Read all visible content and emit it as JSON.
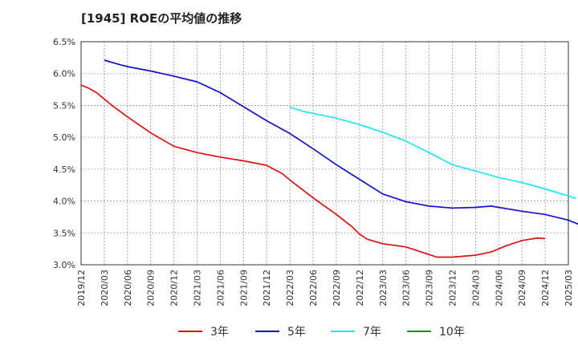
{
  "chart_data": {
    "type": "line",
    "title": "[1945]  ROEの平均値の推移",
    "xlabel": "",
    "ylabel": "",
    "ylim": [
      3.0,
      6.5
    ],
    "y_ticks": [
      "3.0%",
      "3.5%",
      "4.0%",
      "4.5%",
      "5.0%",
      "5.5%",
      "6.0%",
      "6.5%"
    ],
    "x_ticks": [
      "2019/12",
      "2020/03",
      "2020/06",
      "2020/09",
      "2020/12",
      "2021/03",
      "2021/06",
      "2021/09",
      "2021/12",
      "2022/03",
      "2022/06",
      "2022/09",
      "2022/12",
      "2023/03",
      "2023/06",
      "2023/09",
      "2023/12",
      "2024/03",
      "2024/06",
      "2024/09",
      "2024/12",
      "2025/03"
    ],
    "grid": true,
    "legend_position": "bottom",
    "series": [
      {
        "name": "3年",
        "color": "#dd1111",
        "points": [
          [
            "2019/12",
            5.82
          ],
          [
            "2020/01",
            5.77
          ],
          [
            "2020/02",
            5.7
          ],
          [
            "2020/03",
            5.6
          ],
          [
            "2020/04",
            5.5
          ],
          [
            "2020/06",
            5.32
          ],
          [
            "2020/09",
            5.07
          ],
          [
            "2020/12",
            4.86
          ],
          [
            "2021/03",
            4.76
          ],
          [
            "2021/06",
            4.69
          ],
          [
            "2021/09",
            4.63
          ],
          [
            "2021/12",
            4.56
          ],
          [
            "2022/02",
            4.43
          ],
          [
            "2022/03",
            4.33
          ],
          [
            "2022/06",
            4.05
          ],
          [
            "2022/09",
            3.79
          ],
          [
            "2022/11",
            3.6
          ],
          [
            "2022/12",
            3.48
          ],
          [
            "2023/01",
            3.4
          ],
          [
            "2023/03",
            3.33
          ],
          [
            "2023/06",
            3.28
          ],
          [
            "2023/09",
            3.16
          ],
          [
            "2023/10",
            3.12
          ],
          [
            "2023/12",
            3.12
          ],
          [
            "2024/03",
            3.15
          ],
          [
            "2024/05",
            3.2
          ],
          [
            "2024/07",
            3.3
          ],
          [
            "2024/09",
            3.38
          ],
          [
            "2024/11",
            3.42
          ],
          [
            "2024/12",
            3.41
          ]
        ]
      },
      {
        "name": "5年",
        "color": "#1111cc",
        "points": [
          [
            "2020/03",
            6.21
          ],
          [
            "2020/05",
            6.14
          ],
          [
            "2020/06",
            6.11
          ],
          [
            "2020/09",
            6.04
          ],
          [
            "2020/12",
            5.96
          ],
          [
            "2021/03",
            5.87
          ],
          [
            "2021/06",
            5.7
          ],
          [
            "2021/09",
            5.48
          ],
          [
            "2021/12",
            5.26
          ],
          [
            "2022/03",
            5.06
          ],
          [
            "2022/06",
            4.82
          ],
          [
            "2022/09",
            4.57
          ],
          [
            "2022/12",
            4.34
          ],
          [
            "2023/03",
            4.11
          ],
          [
            "2023/06",
            3.99
          ],
          [
            "2023/09",
            3.92
          ],
          [
            "2023/12",
            3.89
          ],
          [
            "2024/03",
            3.9
          ],
          [
            "2024/05",
            3.92
          ],
          [
            "2024/06",
            3.9
          ],
          [
            "2024/09",
            3.84
          ],
          [
            "2024/12",
            3.79
          ],
          [
            "2025/03",
            3.7
          ],
          [
            "2025/05",
            3.6
          ]
        ]
      },
      {
        "name": "7年",
        "color": "#22e5ee",
        "points": [
          [
            "2022/03",
            5.47
          ],
          [
            "2022/05",
            5.4
          ],
          [
            "2022/09",
            5.3
          ],
          [
            "2022/12",
            5.2
          ],
          [
            "2023/03",
            5.08
          ],
          [
            "2023/06",
            4.94
          ],
          [
            "2023/09",
            4.76
          ],
          [
            "2023/12",
            4.57
          ],
          [
            "2024/03",
            4.47
          ],
          [
            "2024/06",
            4.37
          ],
          [
            "2024/09",
            4.29
          ],
          [
            "2024/12",
            4.19
          ],
          [
            "2025/03",
            4.08
          ],
          [
            "2025/04",
            4.04
          ]
        ]
      },
      {
        "name": "10年",
        "color": "#22882a",
        "points": []
      }
    ]
  }
}
